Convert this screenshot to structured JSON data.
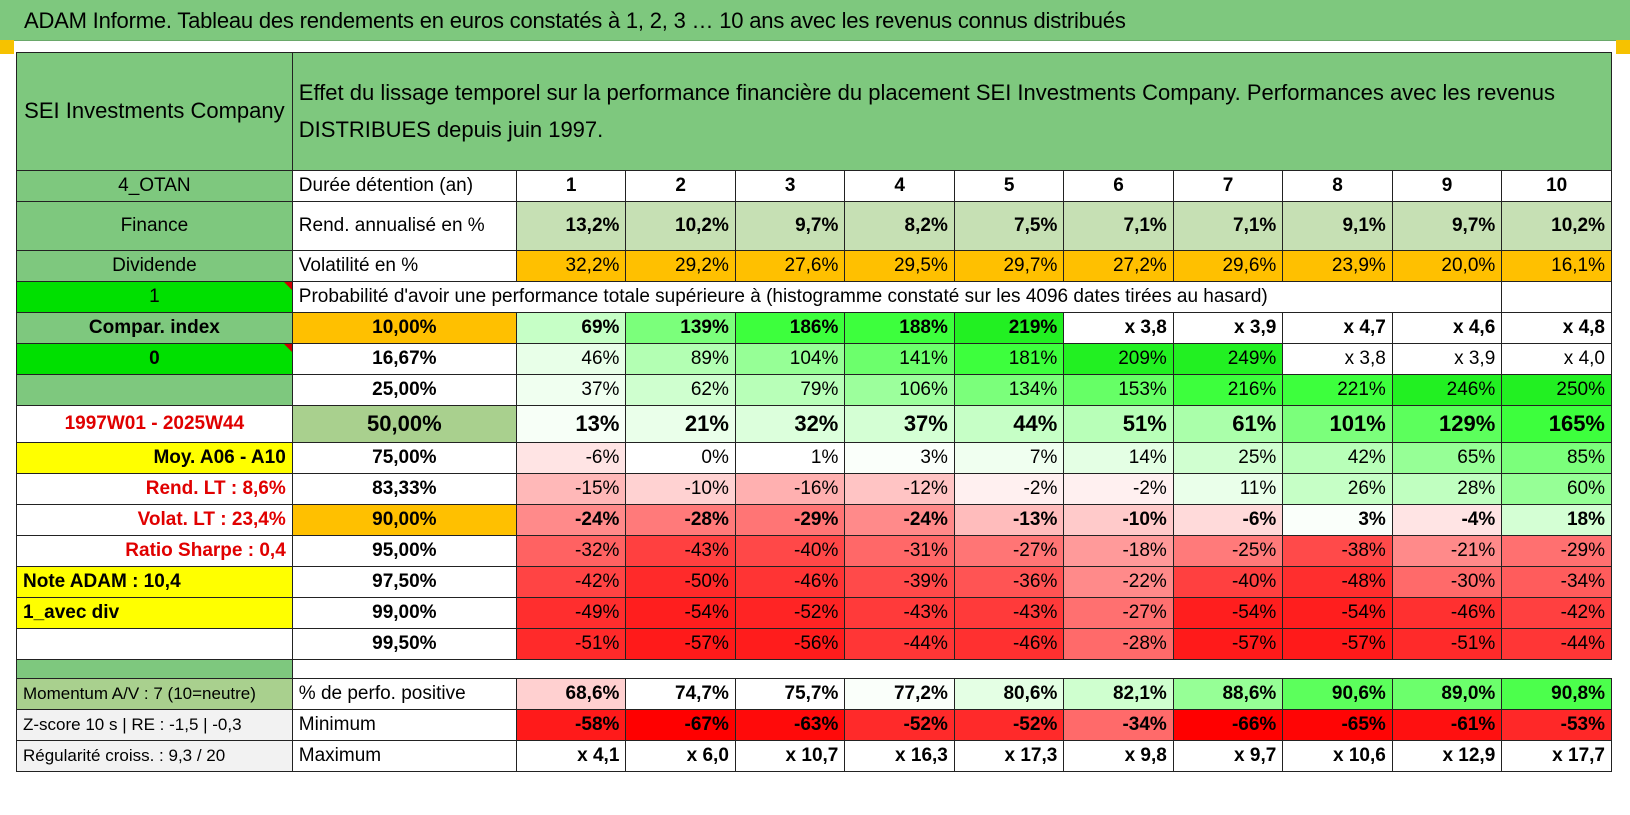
{
  "banner_title": "ADAM Informe. Tableau des rendements en euros constatés à 1, 2, 3 … 10 ans avec les revenus connus distribués",
  "header": {
    "company": "SEI Investments Company",
    "description": "Effet du lissage temporel sur la performance financière du placement SEI Investments Company. Performances avec les revenus DISTRIBUES depuis juin 1997."
  },
  "side_labels": {
    "code": "4_OTAN",
    "sector": "Finance",
    "type": "Dividende",
    "one": "1",
    "compar": "Compar. index",
    "zero": "0",
    "period": "1997W01 - 2025W44",
    "moy": "Moy. A06 - A10",
    "rend_lt": "Rend. LT :    8,6%",
    "volat_lt": "Volat. LT :    23,4%",
    "sharpe": "Ratio Sharpe :     0,4",
    "note": "Note ADAM : 10,4",
    "avec_div": "1_avec div",
    "momentum": "Momentum A/V : 7 (10=neutre)",
    "zscore": "Z-score 10 s | RE : -1,5 | -0,3",
    "regularite": "Régularité croiss. : 9,3 / 20"
  },
  "row_labels": {
    "duree": "Durée détention (an)",
    "rend": "Rend. annualisé en %",
    "volat": "Volatilité en %",
    "proba": "Probabilité d'avoir une performance totale supérieure à (histogramme constaté sur les 4096 dates tirées au hasard)",
    "positive": "% de perfo. positive",
    "minimum": "Minimum",
    "maximum": "Maximum"
  },
  "years": [
    "1",
    "2",
    "3",
    "4",
    "5",
    "6",
    "7",
    "8",
    "9",
    "10"
  ],
  "rend": [
    "13,2%",
    "10,2%",
    "9,7%",
    "8,2%",
    "7,5%",
    "7,1%",
    "7,1%",
    "9,1%",
    "9,7%",
    "10,2%"
  ],
  "volat": [
    "32,2%",
    "29,2%",
    "27,6%",
    "29,5%",
    "29,7%",
    "27,2%",
    "29,6%",
    "23,9%",
    "20,0%",
    "16,1%"
  ],
  "proba_rows": [
    {
      "p": "10,00%",
      "v": [
        "69%",
        "139%",
        "186%",
        "188%",
        "219%",
        "x 3,8",
        "x 3,9",
        "x 4,7",
        "x 4,6",
        "x 4,8"
      ]
    },
    {
      "p": "16,67%",
      "v": [
        "46%",
        "89%",
        "104%",
        "141%",
        "181%",
        "209%",
        "249%",
        "x 3,8",
        "x 3,9",
        "x 4,0"
      ]
    },
    {
      "p": "25,00%",
      "v": [
        "37%",
        "62%",
        "79%",
        "106%",
        "134%",
        "153%",
        "216%",
        "221%",
        "246%",
        "250%"
      ]
    },
    {
      "p": "50,00%",
      "v": [
        "13%",
        "21%",
        "32%",
        "37%",
        "44%",
        "51%",
        "61%",
        "101%",
        "129%",
        "165%"
      ]
    },
    {
      "p": "75,00%",
      "v": [
        "-6%",
        "0%",
        "1%",
        "3%",
        "7%",
        "14%",
        "25%",
        "42%",
        "65%",
        "85%"
      ]
    },
    {
      "p": "83,33%",
      "v": [
        "-15%",
        "-10%",
        "-16%",
        "-12%",
        "-2%",
        "-2%",
        "11%",
        "26%",
        "28%",
        "60%"
      ]
    },
    {
      "p": "90,00%",
      "v": [
        "-24%",
        "-28%",
        "-29%",
        "-24%",
        "-13%",
        "-10%",
        "-6%",
        "3%",
        "-4%",
        "18%"
      ]
    },
    {
      "p": "95,00%",
      "v": [
        "-32%",
        "-43%",
        "-40%",
        "-31%",
        "-27%",
        "-18%",
        "-25%",
        "-38%",
        "-21%",
        "-29%"
      ]
    },
    {
      "p": "97,50%",
      "v": [
        "-42%",
        "-50%",
        "-46%",
        "-39%",
        "-36%",
        "-22%",
        "-40%",
        "-48%",
        "-30%",
        "-34%"
      ]
    },
    {
      "p": "99,00%",
      "v": [
        "-49%",
        "-54%",
        "-52%",
        "-43%",
        "-43%",
        "-27%",
        "-54%",
        "-54%",
        "-46%",
        "-42%"
      ]
    },
    {
      "p": "99,50%",
      "v": [
        "-51%",
        "-57%",
        "-56%",
        "-44%",
        "-46%",
        "-28%",
        "-57%",
        "-57%",
        "-51%",
        "-44%"
      ]
    }
  ],
  "positive": [
    "68,6%",
    "74,7%",
    "75,7%",
    "77,2%",
    "80,6%",
    "82,1%",
    "88,6%",
    "90,6%",
    "89,0%",
    "90,8%"
  ],
  "minimum": [
    "-58%",
    "-67%",
    "-63%",
    "-52%",
    "-52%",
    "-34%",
    "-66%",
    "-65%",
    "-61%",
    "-53%"
  ],
  "maximum": [
    "x 4,1",
    "x 6,0",
    "x 10,7",
    "x 16,3",
    "x 17,3",
    "x 9,8",
    "x 9,7",
    "x 10,6",
    "x 12,9",
    "x 17,7"
  ],
  "colors": {
    "header_green": "#7ec87e",
    "bright_green": "#00e000",
    "yellow": "#ffff00",
    "orange": "#ffc000",
    "sage": "#a9d08e",
    "label_red": "#e00000"
  },
  "cell_colors": {
    "rend": [
      "#c6e0b4",
      "#c6e0b4",
      "#c6e0b4",
      "#c6e0b4",
      "#c6e0b4",
      "#c6e0b4",
      "#c6e0b4",
      "#c6e0b4",
      "#c6e0b4",
      "#c6e0b4"
    ],
    "volat": [
      "#ffc000",
      "#ffc000",
      "#ffc000",
      "#ffc000",
      "#ffc000",
      "#ffc000",
      "#ffc000",
      "#ffc000",
      "#ffc000",
      "#ffc000"
    ],
    "proba": [
      [
        "#c6ffc6",
        "#7bff7b",
        "#3dff3d",
        "#3dff3d",
        "#22f022",
        "#ffffff",
        "#ffffff",
        "#ffffff",
        "#ffffff",
        "#ffffff"
      ],
      [
        "#e8ffe8",
        "#b3ffb3",
        "#96ff96",
        "#6cff6c",
        "#3dff3d",
        "#22f022",
        "#22f022",
        "#ffffff",
        "#ffffff",
        "#ffffff"
      ],
      [
        "#f0fff0",
        "#cfffcf",
        "#b8ffb8",
        "#9cff9c",
        "#7bff7b",
        "#66ff66",
        "#3dff3d",
        "#3dff3d",
        "#22f022",
        "#22f022"
      ],
      [
        "#f7fff7",
        "#eaffea",
        "#dcffdc",
        "#d4ffd4",
        "#c6ffc6",
        "#b8ffb8",
        "#aaffaa",
        "#7bff7b",
        "#5cff5c",
        "#3dff3d"
      ],
      [
        "#ffe4e4",
        "#ffffff",
        "#ffffff",
        "#fafffa",
        "#f0fff0",
        "#e4ffe4",
        "#d0ffd0",
        "#b8ffb8",
        "#96ff96",
        "#7bff7b"
      ],
      [
        "#ffb8b8",
        "#ffd2d2",
        "#ffb0b0",
        "#ffc4c4",
        "#fff0f0",
        "#fff0f0",
        "#eaffea",
        "#c6ffc6",
        "#c0ffc0",
        "#96ff96"
      ],
      [
        "#ff8a8a",
        "#ff7a7a",
        "#ff7575",
        "#ff8a8a",
        "#ffbcbc",
        "#ffcaca",
        "#ffdada",
        "#fafffa",
        "#ffe4e4",
        "#d4ffd4"
      ],
      [
        "#ff6262",
        "#ff4040",
        "#ff4848",
        "#ff6868",
        "#ff7575",
        "#ff9a9a",
        "#ff7a7a",
        "#ff4a4a",
        "#ff8a8a",
        "#ff7070"
      ],
      [
        "#ff4444",
        "#ff2a2a",
        "#ff3434",
        "#ff4a4a",
        "#ff5454",
        "#ff8a8a",
        "#ff4040",
        "#ff2e2e",
        "#ff6a6a",
        "#ff5c5c"
      ],
      [
        "#ff2e2e",
        "#ff1e1e",
        "#ff2424",
        "#ff3a3a",
        "#ff3a3a",
        "#ff7070",
        "#ff1e1e",
        "#ff1e1e",
        "#ff3030",
        "#ff4040"
      ],
      [
        "#ff2a2a",
        "#ff1a1a",
        "#ff1c1c",
        "#ff3636",
        "#ff3030",
        "#ff6a6a",
        "#ff1a1a",
        "#ff1a1a",
        "#ff2a2a",
        "#ff3636"
      ]
    ],
    "positive": [
      "#ffd0d0",
      "#ffffff",
      "#ffffff",
      "#fafffa",
      "#e4ffe4",
      "#cfffcf",
      "#96ff96",
      "#5cff5c",
      "#6cff6c",
      "#4cff4c"
    ],
    "minimum": [
      "#ff1a1a",
      "#ff0000",
      "#ff0a0a",
      "#ff2a2a",
      "#ff2a2a",
      "#ff6a6a",
      "#ff0000",
      "#ff0505",
      "#ff1010",
      "#ff2828"
    ],
    "maximum": [
      "#ffffff",
      "#ffffff",
      "#ffffff",
      "#ffffff",
      "#ffffff",
      "#ffffff",
      "#ffffff",
      "#ffffff",
      "#ffffff",
      "#ffffff"
    ]
  }
}
